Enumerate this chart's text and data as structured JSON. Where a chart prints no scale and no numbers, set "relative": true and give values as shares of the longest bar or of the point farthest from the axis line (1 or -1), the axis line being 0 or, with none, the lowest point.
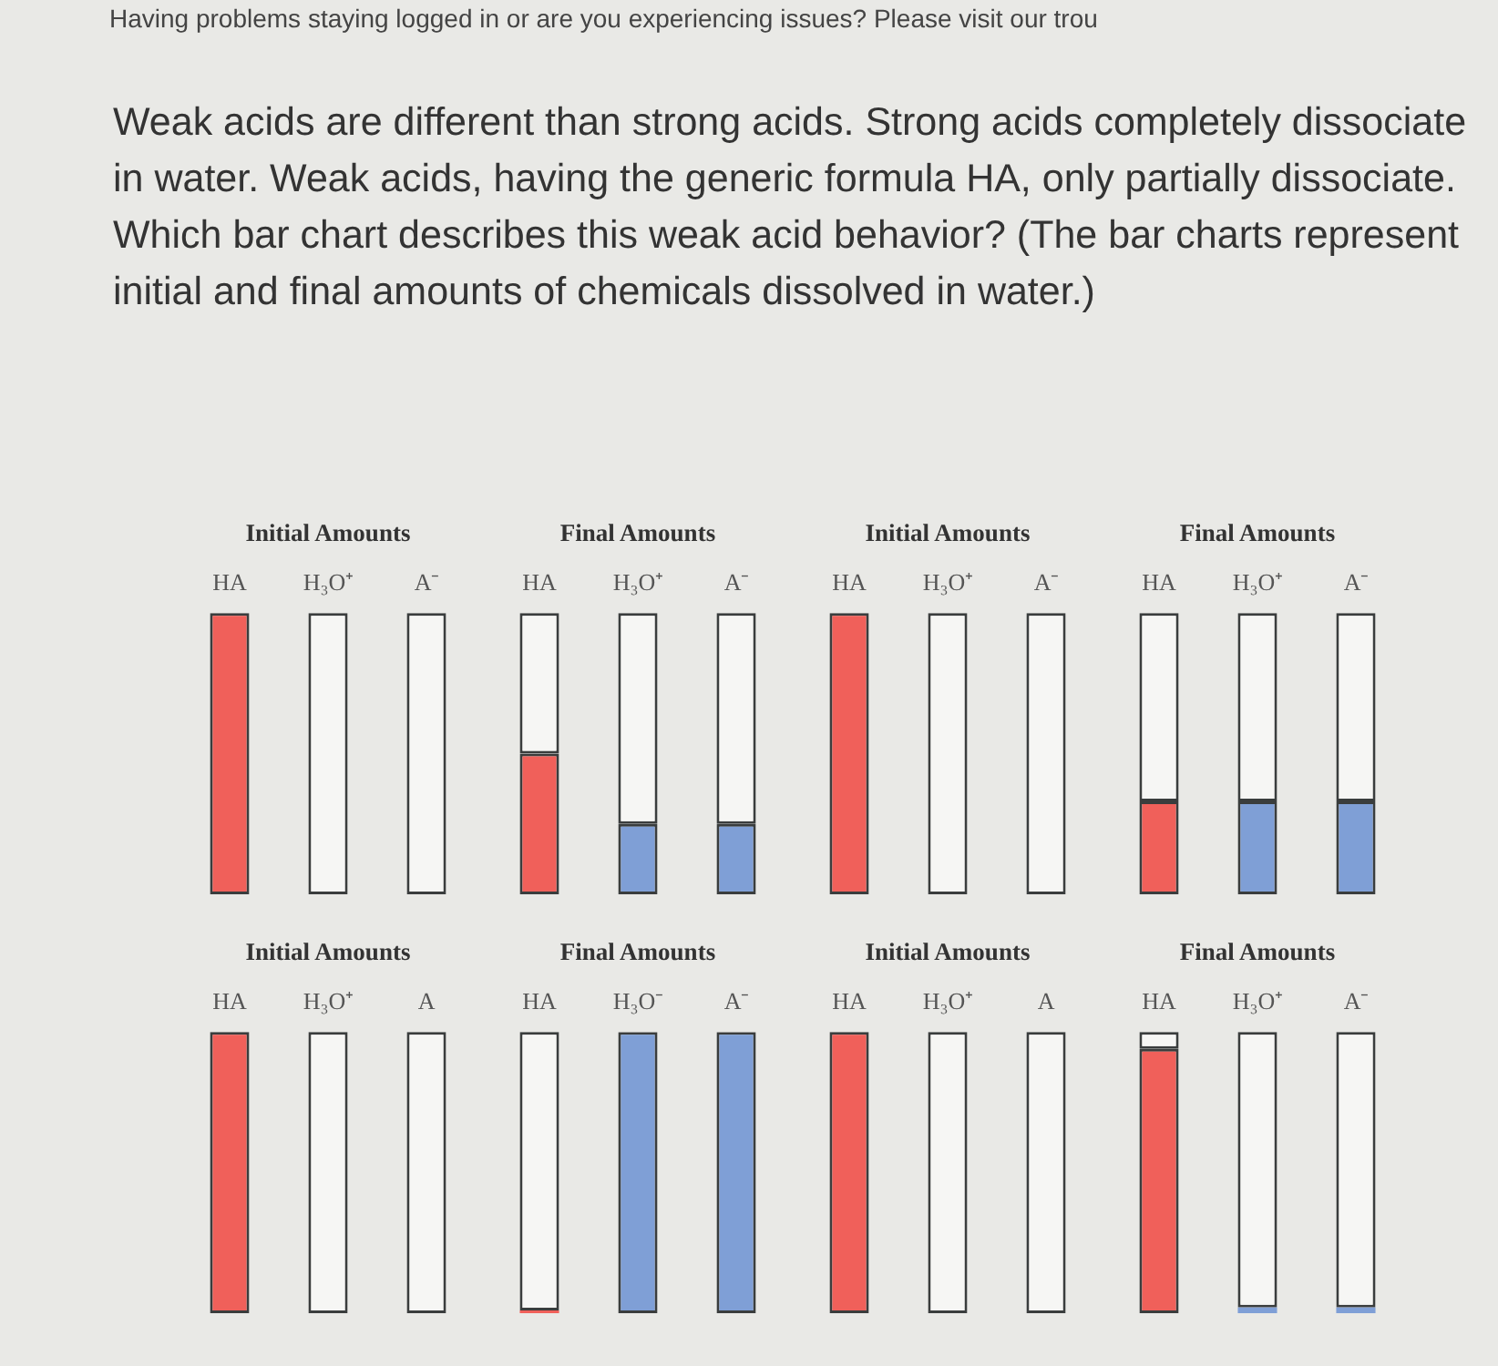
{
  "chart_data": [
    {
      "type": "bar",
      "title": "Initial Amounts",
      "annotations": [
        "Having problems staying logged in or are you experiencing issues? Please visit our trou",
        "Weak acids are different than strong acids. Strong acids completely dissociate in water. Weak acids, having the generic formula HA, only partially dissociate. Which bar chart describes this weak acid behavior? (The bar charts represent initial and final amounts of chemicals dissolved in water.)"
      ],
      "categories": [
        "HA",
        "H₃O⁺",
        "A⁻"
      ],
      "relative": true,
      "stacked": true,
      "tick_labels": "x",
      "series": [
        {
          "colors": [
            "#f0605a",
            "#7f9fd6",
            "#7f9fd6"
          ],
          "values": [
            1,
            0,
            0
          ]
        },
        {
          "color": "#f6f6f4",
          "values": [
            0,
            1,
            1
          ]
        }
      ]
    },
    {
      "type": "bar",
      "title": "Final Amounts",
      "categories": [
        "HA",
        "H₃O⁺",
        "A⁻"
      ],
      "relative": true,
      "stacked": true,
      "tick_labels": "x",
      "series": [
        {
          "colors": [
            "#f0605a",
            "#7f9fd6",
            "#7f9fd6"
          ],
          "values": [
            0.5,
            0.25,
            0.25
          ]
        },
        {
          "color": "#f6f6f4",
          "values": [
            0.5,
            0.75,
            0.75
          ]
        }
      ]
    },
    {
      "type": "bar",
      "title": "Initial Amounts",
      "categories": [
        "HA",
        "H₃O⁺",
        "A⁻"
      ],
      "relative": true,
      "stacked": true,
      "tick_labels": "x",
      "series": [
        {
          "colors": [
            "#f0605a",
            "#7f9fd6",
            "#7f9fd6"
          ],
          "values": [
            1,
            0,
            0
          ]
        },
        {
          "color": "#f6f6f4",
          "values": [
            0,
            1,
            1
          ]
        }
      ]
    },
    {
      "type": "bar",
      "title": "Final Amounts",
      "categories": [
        "HA",
        "H₃O⁺",
        "A⁻"
      ],
      "relative": true,
      "stacked": true,
      "tick_labels": "x",
      "series": [
        {
          "colors": [
            "#f0605a",
            "#7f9fd6",
            "#7f9fd6"
          ],
          "values": [
            0.33,
            0.33,
            0.33
          ]
        },
        {
          "color": "#f6f6f4",
          "values": [
            0.67,
            0.67,
            0.67
          ]
        }
      ]
    },
    {
      "type": "bar",
      "title": "Initial Amounts",
      "categories": [
        "HA",
        "H₃O⁺",
        "A"
      ],
      "relative": true,
      "stacked": true,
      "tick_labels": "x",
      "series": [
        {
          "colors": [
            "#f0605a",
            "#7f9fd6",
            "#7f9fd6"
          ],
          "values": [
            1,
            0,
            0
          ]
        },
        {
          "color": "#f6f6f4",
          "values": [
            0,
            1,
            1
          ]
        }
      ]
    },
    {
      "type": "bar",
      "title": "Final Amounts",
      "categories": [
        "HA",
        "H₃O⁻",
        "A⁻"
      ],
      "relative": true,
      "stacked": true,
      "tick_labels": "x",
      "series": [
        {
          "colors": [
            "#f0605a",
            "#7f9fd6",
            "#7f9fd6"
          ],
          "values": [
            0.01,
            1,
            1
          ]
        },
        {
          "color": "#f6f6f4",
          "values": [
            0.99,
            0,
            0
          ]
        }
      ]
    },
    {
      "type": "bar",
      "title": "Initial Amounts",
      "categories": [
        "HA",
        "H₃O⁺",
        "A"
      ],
      "relative": true,
      "stacked": true,
      "tick_labels": "x",
      "series": [
        {
          "colors": [
            "#f0605a",
            "#7f9fd6",
            "#7f9fd6"
          ],
          "values": [
            1,
            0,
            0
          ]
        },
        {
          "color": "#f6f6f4",
          "values": [
            0,
            1,
            1
          ]
        }
      ]
    },
    {
      "type": "bar",
      "title": "Final Amounts",
      "categories": [
        "HA",
        "H₃O⁺",
        "A⁻"
      ],
      "relative": true,
      "stacked": true,
      "tick_labels": "x",
      "series": [
        {
          "colors": [
            "#f0605a",
            "#7f9fd6",
            "#7f9fd6"
          ],
          "values": [
            0.94,
            0.02,
            0.02
          ]
        },
        {
          "color": "#f6f6f4",
          "values": [
            0.06,
            0.98,
            0.98
          ]
        }
      ]
    }
  ]
}
